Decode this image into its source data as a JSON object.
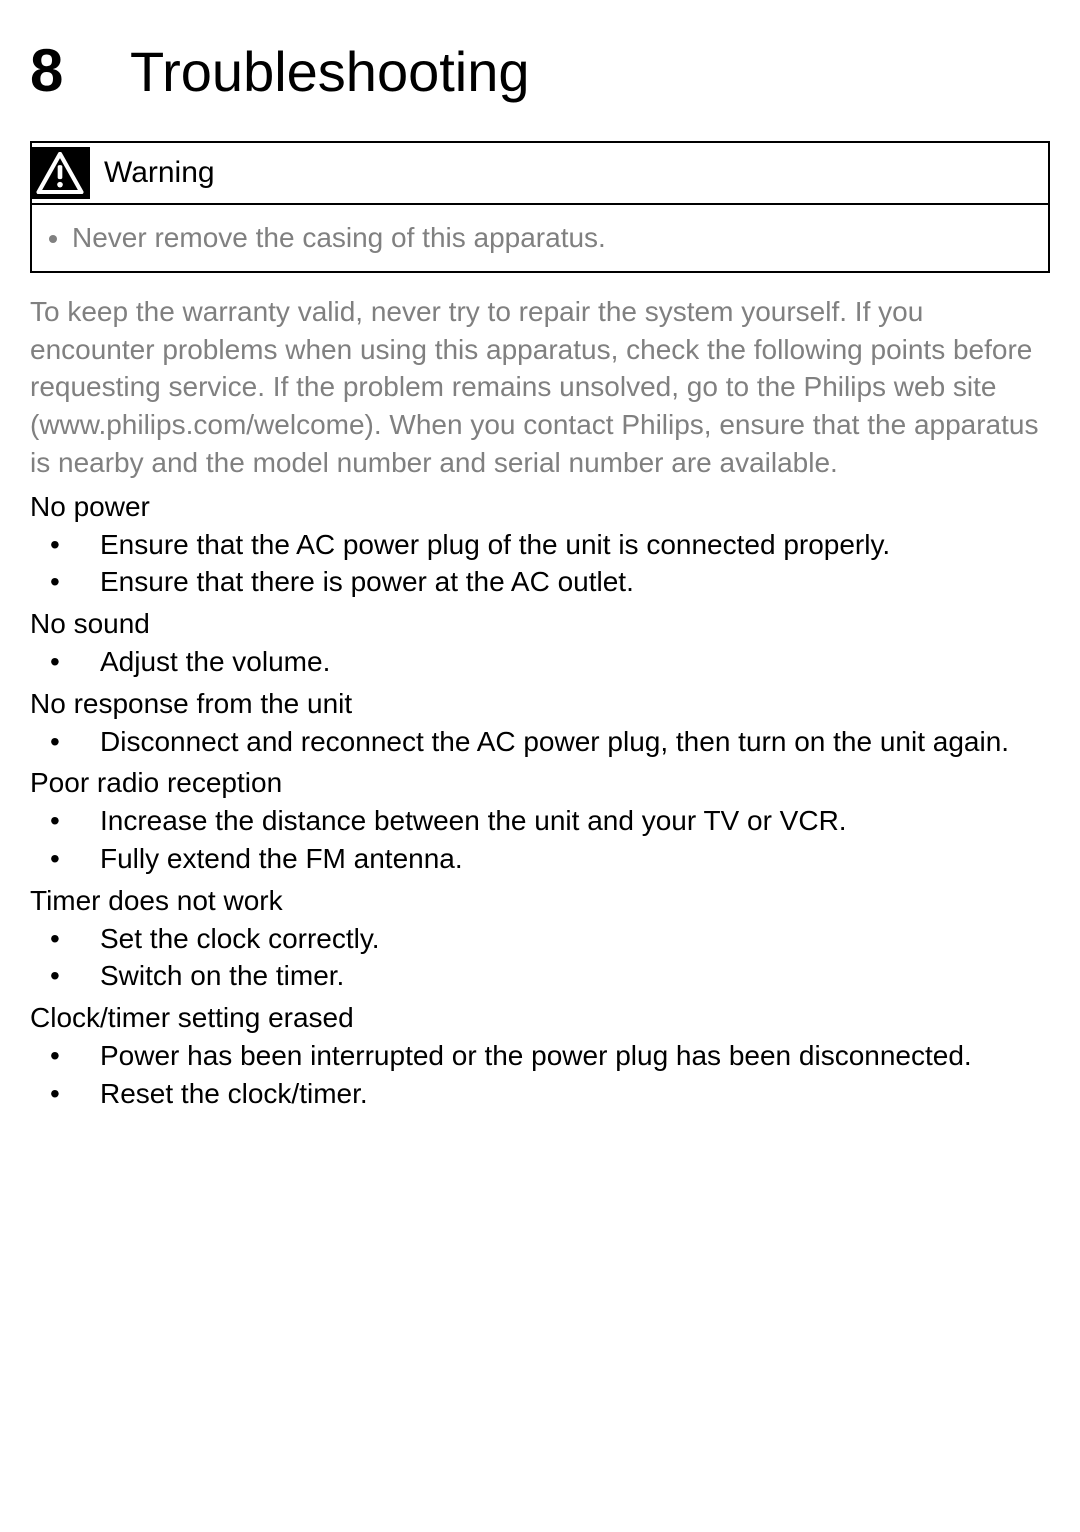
{
  "chapter": {
    "number": "8",
    "title": "Troubleshooting"
  },
  "warning": {
    "label": "Warning",
    "items": [
      "Never remove the casing of this apparatus."
    ]
  },
  "intro": "To keep the warranty valid, never try to repair the system yourself. If you encounter problems when using this apparatus, check the following points before requesting service. If the problem remains unsolved, go to the Philips web site (www.philips.com/welcome). When you contact Philips, ensure that the apparatus is nearby and the model number and serial number are available.",
  "sections": [
    {
      "title": "No power",
      "items": [
        "Ensure that the AC power plug of the unit is connected properly.",
        "Ensure that there is power at the AC outlet."
      ]
    },
    {
      "title": "No sound",
      "items": [
        "Adjust the volume."
      ]
    },
    {
      "title": "No response from the unit",
      "items": [
        "Disconnect and reconnect the AC power plug, then turn on the unit again."
      ]
    },
    {
      "title": "Poor radio reception",
      "items": [
        "Increase the distance between the unit and your TV or VCR.",
        "Fully extend the FM antenna."
      ]
    },
    {
      "title": "Timer does not work",
      "items": [
        "Set the clock correctly.",
        "Switch on the timer."
      ]
    },
    {
      "title": "Clock/timer setting erased",
      "items": [
        "Power has been interrupted or the power plug has been disconnected.",
        "Reset the clock/timer."
      ]
    }
  ],
  "colors": {
    "text": "#000000",
    "muted": "#808080",
    "border": "#000000",
    "icon_bg": "#000000",
    "icon_fg": "#ffffff",
    "background": "#ffffff"
  }
}
